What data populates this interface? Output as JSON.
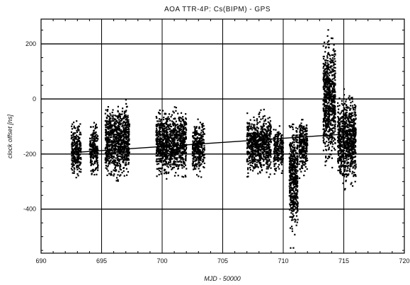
{
  "chart_data": {
    "type": "scatter",
    "title": "AOA TTR-4P:     Cs(BIPM) - GPS",
    "xlabel": "MJD - 50000",
    "ylabel": "clock offset [ns]",
    "xlim": [
      690,
      720
    ],
    "ylim": [
      -560,
      290
    ],
    "x_ticks": [
      "690",
      "695",
      "700",
      "705",
      "710",
      "715",
      "720"
    ],
    "y_ticks": [
      "200",
      "0",
      "-200",
      "-400"
    ],
    "grid": true,
    "marker": "asterisk",
    "color": "#000000",
    "trend_line": {
      "x": [
        692.5,
        716.0
      ],
      "y": [
        -195,
        -125
      ]
    },
    "point_clusters": [
      {
        "x": [
          692.5,
          693.3
        ],
        "y": [
          -310,
          -60
        ]
      },
      {
        "x": [
          694.0,
          694.7
        ],
        "y": [
          -300,
          -70
        ]
      },
      {
        "x": [
          695.3,
          697.3
        ],
        "y": [
          -320,
          20
        ]
      },
      {
        "x": [
          699.5,
          702.0
        ],
        "y": [
          -310,
          -10
        ]
      },
      {
        "x": [
          702.5,
          703.5
        ],
        "y": [
          -300,
          -50
        ]
      },
      {
        "x": [
          707.0,
          709.0
        ],
        "y": [
          -300,
          -30
        ]
      },
      {
        "x": [
          709.2,
          710.0
        ],
        "y": [
          -290,
          -80
        ]
      },
      {
        "x": [
          710.5,
          711.2
        ],
        "y": [
          -550,
          -30
        ]
      },
      {
        "x": [
          711.3,
          712.0
        ],
        "y": [
          -300,
          -50
        ]
      },
      {
        "x": [
          713.3,
          714.3
        ],
        "y": [
          -280,
          280
        ]
      },
      {
        "x": [
          714.5,
          716.0
        ],
        "y": [
          -350,
          50
        ]
      }
    ]
  }
}
